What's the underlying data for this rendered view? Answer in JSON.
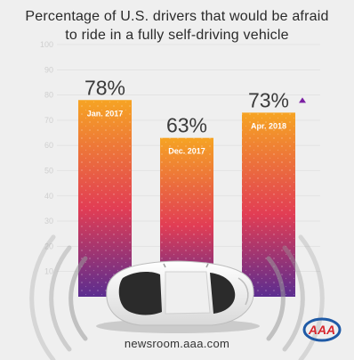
{
  "title": {
    "line1": "Percentage of U.S. drivers that would be afraid",
    "line2": "to ride in a fully self-driving vehicle"
  },
  "chart_data": {
    "type": "bar",
    "title": "Percentage of U.S. drivers that would be afraid to ride in a fully self-driving vehicle",
    "categories": [
      "Jan. 2017",
      "Dec. 2017",
      "Apr. 2018"
    ],
    "values": [
      78,
      63,
      73
    ],
    "value_labels": [
      "78%",
      "63%",
      "73%"
    ],
    "ylim": [
      0,
      100
    ],
    "yticks": [
      10,
      20,
      30,
      40,
      50,
      60,
      70,
      80,
      90,
      100
    ],
    "grid": true,
    "legend": "none",
    "trend_marker": "up",
    "colors": {
      "bar_top": "#f6a423",
      "bar_mid": "#e23d54",
      "bar_bottom": "#5b2d90",
      "trend": "#7b1fa2"
    }
  },
  "footer": "newsroom.aaa.com",
  "logo": {
    "text": "AAA",
    "colors": {
      "red": "#d7262d",
      "blue": "#1f5aa6"
    }
  }
}
